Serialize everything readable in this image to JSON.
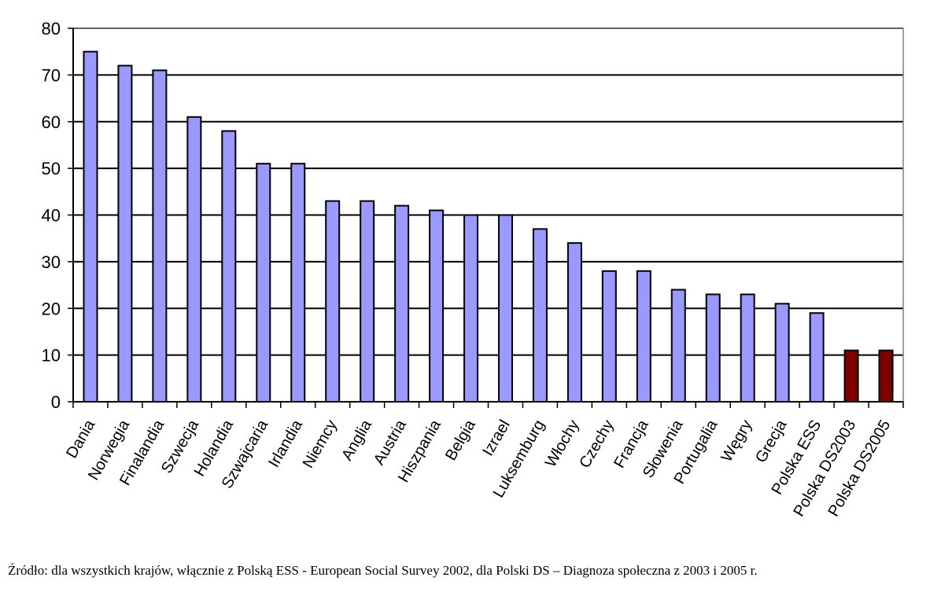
{
  "chart_data": {
    "type": "bar",
    "title": "",
    "xlabel": "",
    "ylabel": "",
    "ylim": [
      0,
      80
    ],
    "yticks": [
      0,
      10,
      20,
      30,
      40,
      50,
      60,
      70,
      80
    ],
    "grid": true,
    "legend": "none",
    "categories": [
      "Dania",
      "Norwegia",
      "Finalandia",
      "Szwecja",
      "Holandia",
      "Szwajcaria",
      "Irlandia",
      "Niemcy",
      "Anglia",
      "Austria",
      "Hiszpania",
      "Belgia",
      "Izrael",
      "Luksemburg",
      "Włochy",
      "Czechy",
      "Francja",
      "Słowenia",
      "Portugalia",
      "Węgry",
      "Grecja",
      "Polska ESS",
      "Polska DS2003",
      "Polska DS2005"
    ],
    "values": [
      75,
      72,
      71,
      61,
      58,
      51,
      51,
      43,
      43,
      42,
      41,
      40,
      40,
      37,
      34,
      28,
      28,
      24,
      23,
      23,
      21,
      19,
      11,
      11
    ],
    "colors": {
      "default_bar": "#9999ff",
      "highlight_bar": "#800000",
      "highlight_categories": [
        "Polska DS2003",
        "Polska DS2005"
      ]
    }
  },
  "source_note": "Źródło: dla wszystkich krajów, włącznie z Polską ESS - European Social Survey 2002, dla Polski DS – Diagnoza społeczna z 2003 i 2005 r."
}
